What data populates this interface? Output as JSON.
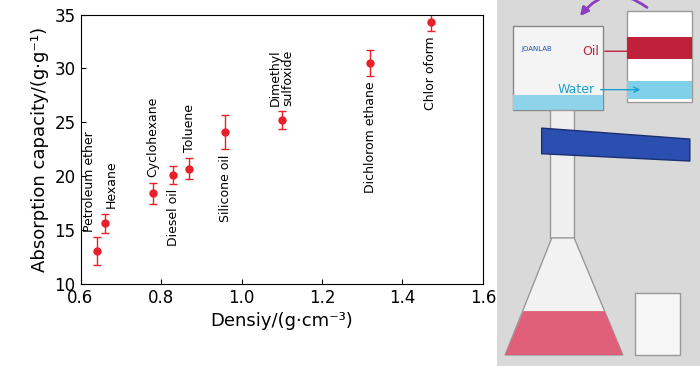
{
  "chart_data": {
    "type": "scatter",
    "x_label": "Densiy/(g·cm⁻³)",
    "y_label": "Absorption capacity/(g·g⁻¹)",
    "categories": [
      "Petroleum ether",
      "Hexane",
      "Cyclohexane",
      "Diesel oil",
      "Toluene",
      "Silicone oil",
      "Dimethyl\nsulfoxide",
      "Dichlorom ethane",
      "Chlor oform"
    ],
    "x": [
      0.64,
      0.66,
      0.78,
      0.83,
      0.87,
      0.96,
      1.1,
      1.32,
      1.47
    ],
    "values": [
      13.0,
      15.6,
      18.4,
      20.1,
      20.7,
      24.1,
      25.2,
      30.5,
      34.3
    ],
    "error": [
      1.3,
      0.9,
      1.0,
      0.8,
      1.0,
      1.6,
      0.8,
      1.2,
      0.8
    ],
    "color": "#e8202a",
    "marker": "o",
    "xlim": [
      0.6,
      1.6
    ],
    "xticks": [
      0.6,
      0.8,
      1.0,
      1.2,
      1.4,
      1.6
    ],
    "ylim": [
      10,
      35
    ],
    "yticks": [
      10,
      15,
      20,
      25,
      30,
      35
    ],
    "grid": false
  },
  "photo": {
    "brand": "JOANLAB",
    "oil": "Oil",
    "water": "Water"
  }
}
